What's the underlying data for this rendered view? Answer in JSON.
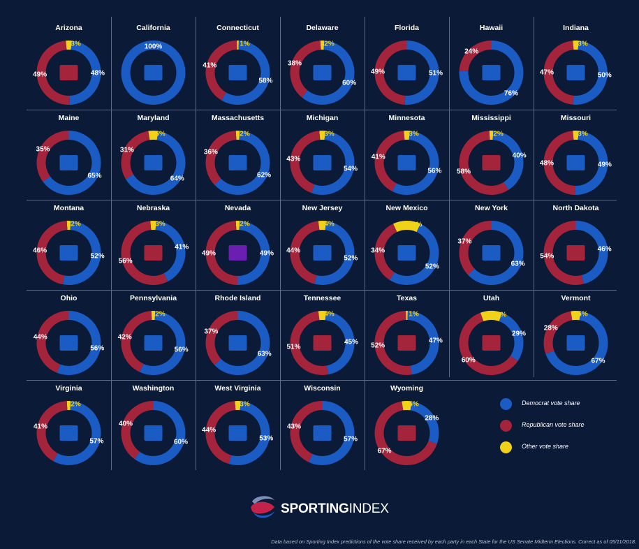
{
  "chart_data": {
    "type": "pie",
    "subtype": "donut-small-multiples",
    "colors": {
      "dem": "#1a5bc4",
      "rep": "#a4243b",
      "oth": "#f1d218",
      "label": "#ffffff",
      "other_label": "#f1d218"
    },
    "legend": [
      {
        "key": "dem",
        "label": "Democrat vote share"
      },
      {
        "key": "rep",
        "label": "Republican vote share"
      },
      {
        "key": "oth",
        "label": "Other vote share"
      }
    ],
    "states": [
      {
        "name": "Arizona",
        "dem": 48,
        "rep": 49,
        "oth": 3,
        "dem_label": "48%",
        "rep_label": "49%",
        "oth_label": "3%"
      },
      {
        "name": "California",
        "dem": 100,
        "rep": 0,
        "oth": 0,
        "dem_label": "100%",
        "rep_label": "",
        "oth_label": ""
      },
      {
        "name": "Connecticut",
        "dem": 58,
        "rep": 41,
        "oth": 1,
        "dem_label": "58%",
        "rep_label": "41%",
        "oth_label": "1%"
      },
      {
        "name": "Delaware",
        "dem": 60,
        "rep": 38,
        "oth": 2,
        "dem_label": "60%",
        "rep_label": "38%",
        "oth_label": "2%"
      },
      {
        "name": "Florida",
        "dem": 51,
        "rep": 49,
        "oth": 0,
        "dem_label": "51%",
        "rep_label": "49%",
        "oth_label": ""
      },
      {
        "name": "Hawaii",
        "dem": 76,
        "rep": 24,
        "oth": 0,
        "dem_label": "76%",
        "rep_label": "24%",
        "oth_label": ""
      },
      {
        "name": "Indiana",
        "dem": 50,
        "rep": 47,
        "oth": 3,
        "dem_label": "50%",
        "rep_label": "47%",
        "oth_label": "3%"
      },
      {
        "name": "Maine",
        "dem": 65,
        "rep": 35,
        "oth": 0,
        "dem_label": "65%",
        "rep_label": "35%",
        "oth_label": ""
      },
      {
        "name": "Maryland",
        "dem": 64,
        "rep": 31,
        "oth": 5,
        "dem_label": "64%",
        "rep_label": "31%",
        "oth_label": "5%"
      },
      {
        "name": "Massachusetts",
        "dem": 62,
        "rep": 36,
        "oth": 2,
        "dem_label": "62%",
        "rep_label": "36%",
        "oth_label": "2%"
      },
      {
        "name": "Michigan",
        "dem": 54,
        "rep": 43,
        "oth": 3,
        "dem_label": "54%",
        "rep_label": "43%",
        "oth_label": "3%"
      },
      {
        "name": "Minnesota",
        "dem": 56,
        "rep": 41,
        "oth": 3,
        "dem_label": "56%",
        "rep_label": "41%",
        "oth_label": "3%"
      },
      {
        "name": "Mississippi",
        "dem": 40,
        "rep": 58,
        "oth": 2,
        "dem_label": "40%",
        "rep_label": "58%",
        "oth_label": "2%"
      },
      {
        "name": "Missouri",
        "dem": 49,
        "rep": 48,
        "oth": 3,
        "dem_label": "49%",
        "rep_label": "48%",
        "oth_label": "3%"
      },
      {
        "name": "Montana",
        "dem": 52,
        "rep": 46,
        "oth": 2,
        "dem_label": "52%",
        "rep_label": "46%",
        "oth_label": "2%"
      },
      {
        "name": "Nebraska",
        "dem": 41,
        "rep": 56,
        "oth": 3,
        "dem_label": "41%",
        "rep_label": "56%",
        "oth_label": "3%"
      },
      {
        "name": "Nevada",
        "dem": 49,
        "rep": 49,
        "oth": 2,
        "dem_label": "49%",
        "rep_label": "49%",
        "oth_label": "2%"
      },
      {
        "name": "New Jersey",
        "dem": 52,
        "rep": 44,
        "oth": 4,
        "dem_label": "52%",
        "rep_label": "44%",
        "oth_label": "4%"
      },
      {
        "name": "New Mexico",
        "dem": 52,
        "rep": 34,
        "oth": 14,
        "dem_label": "52%",
        "rep_label": "34%",
        "oth_label": "14%"
      },
      {
        "name": "New York",
        "dem": 63,
        "rep": 37,
        "oth": 0,
        "dem_label": "63%",
        "rep_label": "37%",
        "oth_label": ""
      },
      {
        "name": "North Dakota",
        "dem": 46,
        "rep": 54,
        "oth": 0,
        "dem_label": "46%",
        "rep_label": "54%",
        "oth_label": ""
      },
      {
        "name": "Ohio",
        "dem": 56,
        "rep": 44,
        "oth": 0,
        "dem_label": "56%",
        "rep_label": "44%",
        "oth_label": ""
      },
      {
        "name": "Pennsylvania",
        "dem": 56,
        "rep": 42,
        "oth": 2,
        "dem_label": "56%",
        "rep_label": "42%",
        "oth_label": "2%"
      },
      {
        "name": "Rhode Island",
        "dem": 63,
        "rep": 37,
        "oth": 0,
        "dem_label": "63%",
        "rep_label": "37%",
        "oth_label": ""
      },
      {
        "name": "Tennessee",
        "dem": 45,
        "rep": 51,
        "oth": 4,
        "dem_label": "45%",
        "rep_label": "51%",
        "oth_label": "4%"
      },
      {
        "name": "Texas",
        "dem": 47,
        "rep": 52,
        "oth": 1,
        "dem_label": "47%",
        "rep_label": "52%",
        "oth_label": "1%"
      },
      {
        "name": "Utah",
        "dem": 29,
        "rep": 60,
        "oth": 11,
        "dem_label": "29%",
        "rep_label": "60%",
        "oth_label": "11%"
      },
      {
        "name": "Vermont",
        "dem": 67,
        "rep": 28,
        "oth": 5,
        "dem_label": "67%",
        "rep_label": "28%",
        "oth_label": "5%"
      },
      {
        "name": "Virginia",
        "dem": 57,
        "rep": 41,
        "oth": 2,
        "dem_label": "57%",
        "rep_label": "41%",
        "oth_label": "2%"
      },
      {
        "name": "Washington",
        "dem": 60,
        "rep": 40,
        "oth": 0,
        "dem_label": "60%",
        "rep_label": "40%",
        "oth_label": ""
      },
      {
        "name": "West Virginia",
        "dem": 53,
        "rep": 44,
        "oth": 3,
        "dem_label": "53%",
        "rep_label": "44%",
        "oth_label": "3%"
      },
      {
        "name": "Wisconsin",
        "dem": 57,
        "rep": 43,
        "oth": 0,
        "dem_label": "57%",
        "rep_label": "43%",
        "oth_label": ""
      },
      {
        "name": "Wyoming",
        "dem": 28,
        "rep": 67,
        "oth": 5,
        "dem_label": "28%",
        "rep_label": "67%",
        "oth_label": "5%"
      }
    ]
  },
  "brand": {
    "name_bold": "SPORTING",
    "name_regular": "INDEX",
    "logo_icon": "sporting-index-swirl-logo"
  },
  "footnote": "Data based on Sporting Index predictions of the vote share received by each party in each State for the US Senate Midterm Elections. Correct as of 05/11/2018."
}
